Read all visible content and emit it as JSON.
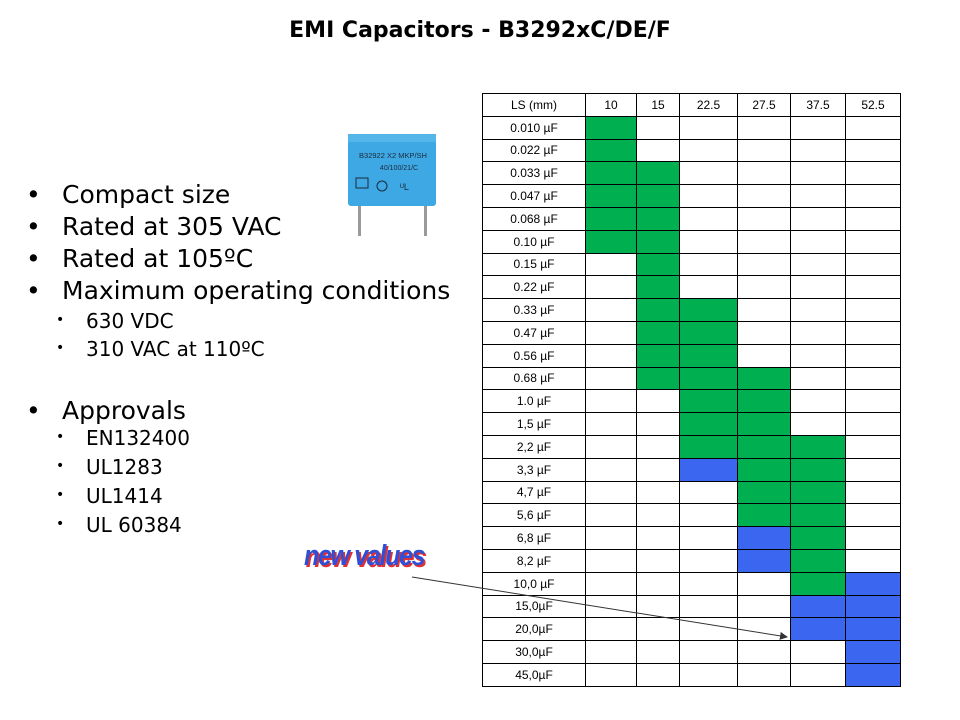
{
  "title": "EMI Capacitors - B3292xC/DE/F",
  "bullets": [
    {
      "level": 1,
      "text": "Compact size"
    },
    {
      "level": 1,
      "text": "Rated at 305 VAC"
    },
    {
      "level": 1,
      "text": "Rated at 105ºC"
    },
    {
      "level": 1,
      "text": "Maximum operating conditions"
    },
    {
      "level": 2,
      "text": "630 VDC"
    },
    {
      "level": 2,
      "text": "310 VAC at 110ºC"
    },
    {
      "level": 1,
      "text": "Approvals"
    },
    {
      "level": 2,
      "text": "EN132400"
    },
    {
      "level": 2,
      "text": "UL1283"
    },
    {
      "level": 2,
      "text": "UL1414"
    },
    {
      "level": 2,
      "text": "UL 60384"
    }
  ],
  "capacitor_label": {
    "line1": "B32922 X2 MKP/SH",
    "line2": "40/100/21/C"
  },
  "new_values_label": "new values",
  "table": {
    "header_label": "LS (mm)",
    "columns": [
      "10",
      "15",
      "22.5",
      "27.5",
      "37.5",
      "52.5"
    ],
    "legend_colors": {
      "standard": "#00b050",
      "new": "#3a66f0"
    },
    "rows": [
      {
        "label": "0.010 µF",
        "cells": [
          "g",
          "",
          "",
          "",
          "",
          ""
        ]
      },
      {
        "label": "0.022 µF",
        "cells": [
          "g",
          "",
          "",
          "",
          "",
          ""
        ]
      },
      {
        "label": "0.033 µF",
        "cells": [
          "g",
          "g",
          "",
          "",
          "",
          ""
        ]
      },
      {
        "label": "0.047 µF",
        "cells": [
          "g",
          "g",
          "",
          "",
          "",
          ""
        ]
      },
      {
        "label": "0.068 µF",
        "cells": [
          "g",
          "g",
          "",
          "",
          "",
          ""
        ]
      },
      {
        "label": "0.10 µF",
        "cells": [
          "g",
          "g",
          "",
          "",
          "",
          ""
        ]
      },
      {
        "label": "0.15 µF",
        "cells": [
          "",
          "g",
          "",
          "",
          "",
          ""
        ]
      },
      {
        "label": "0.22 µF",
        "cells": [
          "",
          "g",
          "",
          "",
          "",
          ""
        ]
      },
      {
        "label": "0.33 µF",
        "cells": [
          "",
          "g",
          "g",
          "",
          "",
          ""
        ]
      },
      {
        "label": "0.47 µF",
        "cells": [
          "",
          "g",
          "g",
          "",
          "",
          ""
        ]
      },
      {
        "label": "0.56 µF",
        "cells": [
          "",
          "g",
          "g",
          "",
          "",
          ""
        ]
      },
      {
        "label": "0.68 µF",
        "cells": [
          "",
          "g",
          "g",
          "g",
          "",
          ""
        ]
      },
      {
        "label": "1.0 µF",
        "cells": [
          "",
          "",
          "g",
          "g",
          "",
          ""
        ]
      },
      {
        "label": "1,5 µF",
        "cells": [
          "",
          "",
          "g",
          "g",
          "",
          ""
        ]
      },
      {
        "label": "2,2 µF",
        "cells": [
          "",
          "",
          "g",
          "g",
          "g",
          ""
        ]
      },
      {
        "label": "3,3 µF",
        "cells": [
          "",
          "",
          "b",
          "g",
          "g",
          ""
        ]
      },
      {
        "label": "4,7 µF",
        "cells": [
          "",
          "",
          "",
          "g",
          "g",
          ""
        ]
      },
      {
        "label": "5,6 µF",
        "cells": [
          "",
          "",
          "",
          "g",
          "g",
          ""
        ]
      },
      {
        "label": "6,8 µF",
        "cells": [
          "",
          "",
          "",
          "b",
          "g",
          ""
        ]
      },
      {
        "label": "8,2 µF",
        "cells": [
          "",
          "",
          "",
          "b",
          "g",
          ""
        ]
      },
      {
        "label": "10,0 µF",
        "cells": [
          "",
          "",
          "",
          "",
          "g",
          "b"
        ]
      },
      {
        "label": "15,0µF",
        "cells": [
          "",
          "",
          "",
          "",
          "b",
          "b"
        ]
      },
      {
        "label": "20,0µF",
        "cells": [
          "",
          "",
          "",
          "",
          "b",
          "b"
        ]
      },
      {
        "label": "30,0µF",
        "cells": [
          "",
          "",
          "",
          "",
          "",
          "b"
        ]
      },
      {
        "label": "45,0µF",
        "cells": [
          "",
          "",
          "",
          "",
          "",
          "b"
        ]
      }
    ]
  }
}
